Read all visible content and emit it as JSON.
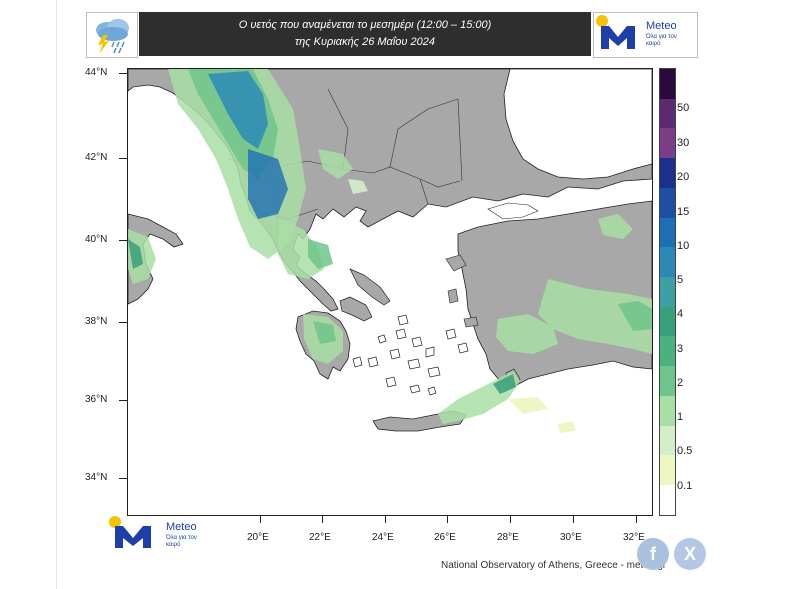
{
  "header": {
    "title_line1": "Ο υετός που αναμένεται το μεσημέρι (12:00 – 15:00)",
    "title_line2": "της Κυριακής 26 Μαΐου 2024",
    "weather_icon": "cloud-rain-lightning-icon"
  },
  "brand": {
    "name": "Meteo",
    "tagline": "Όλα για τον καιρό",
    "logo_letter": "M",
    "blue": "#1f3fa8",
    "sun": "#f5c300"
  },
  "map": {
    "region": "Greece",
    "lat_labels": [
      "44°N",
      "42°N",
      "40°N",
      "38°N",
      "36°N",
      "34°N"
    ],
    "lon_labels": [
      "20°E",
      "22°E",
      "24°E",
      "26°E",
      "28°E",
      "30°E",
      "32°E"
    ],
    "land_color": "#a8a8a8",
    "sea_color": "#ffffff"
  },
  "legend": {
    "labels": [
      "50",
      "30",
      "20",
      "15",
      "10",
      "5",
      "4",
      "3",
      "2",
      "1",
      "0.5",
      "0.1"
    ],
    "colors": [
      "#2a0a3c",
      "#5c2a70",
      "#7a3e86",
      "#1b2f8c",
      "#1f4fa3",
      "#1e6fb1",
      "#2b89b6",
      "#3aa0a4",
      "#38a07a",
      "#4ab27e",
      "#6fc48b",
      "#a9dea4",
      "#d4eec9",
      "#eef6c2",
      "#ffffff"
    ]
  },
  "footer": {
    "credit": "National Observatory of Athens, Greece - meteo.gr",
    "facebook_icon": "f",
    "x_icon": "X"
  }
}
